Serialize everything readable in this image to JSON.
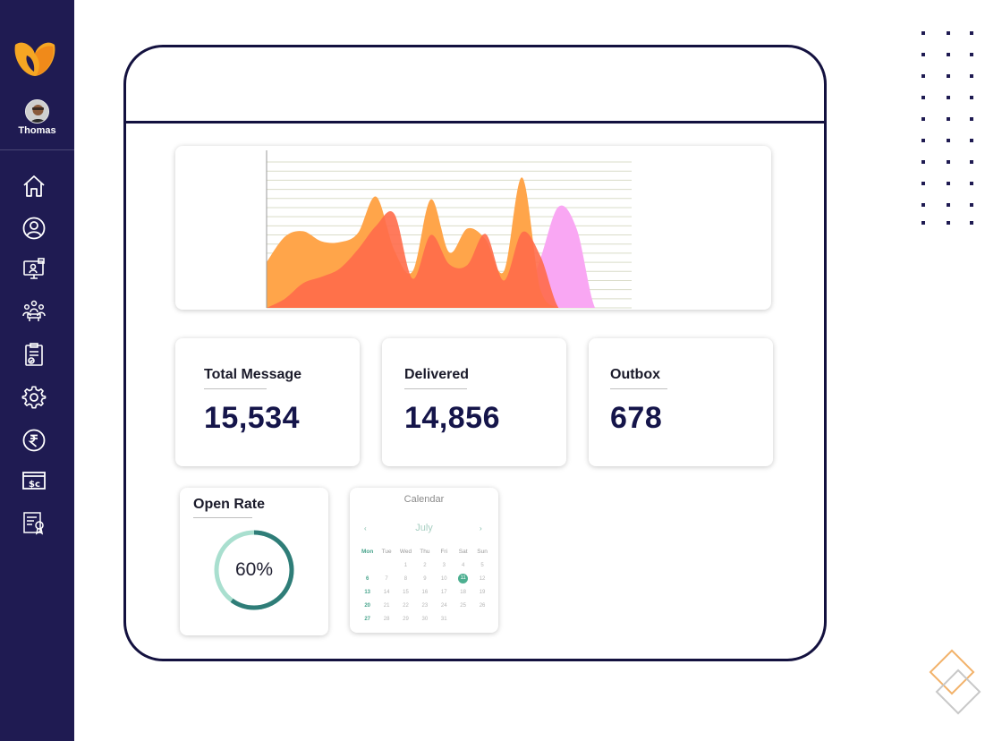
{
  "user": {
    "name": "Thomas"
  },
  "sidebar": {
    "items": [
      {
        "icon": "home-icon"
      },
      {
        "icon": "user-icon"
      },
      {
        "icon": "monitor-user-icon"
      },
      {
        "icon": "team-icon"
      },
      {
        "icon": "clipboard-check-icon"
      },
      {
        "icon": "gear-icon"
      },
      {
        "icon": "rupee-icon"
      },
      {
        "icon": "billing-icon"
      },
      {
        "icon": "certificate-icon"
      }
    ]
  },
  "stats": [
    {
      "label": "Total Message",
      "value": "15,534"
    },
    {
      "label": "Delivered",
      "value": "14,856"
    },
    {
      "label": "Outbox",
      "value": "678"
    }
  ],
  "open_rate": {
    "label": "Open Rate",
    "value_text": "60%",
    "value": 60
  },
  "calendar": {
    "title": "Calendar",
    "month": "July",
    "prev": "‹",
    "next": "›",
    "weekdays": [
      "Mon",
      "Tue",
      "Wed",
      "Thu",
      "Fri",
      "Sat",
      "Sun"
    ],
    "weeks": [
      [
        "",
        "",
        "1",
        "2",
        "3",
        "4",
        "5"
      ],
      [
        "6",
        "7",
        "8",
        "9",
        "10",
        "11",
        "12"
      ],
      [
        "13",
        "14",
        "15",
        "16",
        "17",
        "18",
        "19"
      ],
      [
        "20",
        "21",
        "22",
        "23",
        "24",
        "25",
        "26"
      ],
      [
        "27",
        "28",
        "29",
        "30",
        "31",
        "",
        ""
      ]
    ],
    "selected": "11"
  },
  "colors": {
    "sidebar": "#1f1b52",
    "frame": "#13113f",
    "orange": "#ffa54a",
    "red": "#ff6b4a",
    "pink": "#f9a7f3",
    "gauge": "#2f7d78",
    "gauge_track": "#a9dfcf"
  },
  "chart_data": {
    "type": "area",
    "x": [
      0,
      1,
      2,
      3,
      4,
      5,
      6,
      7,
      8,
      9,
      10,
      11,
      12,
      13,
      14,
      15,
      16,
      17,
      18,
      19,
      20
    ],
    "series": [
      {
        "name": "orange",
        "values": [
          5.0,
          7.8,
          8.4,
          7.3,
          7.2,
          8.2,
          12.2,
          6.3,
          4.0,
          11.9,
          6.1,
          8.7,
          7.5,
          4.0,
          14.3,
          2.0,
          0.0,
          0.0,
          0.0,
          0.0,
          0.0
        ]
      },
      {
        "name": "red",
        "values": [
          0.0,
          1.0,
          2.7,
          3.4,
          4.3,
          6.4,
          9.0,
          10.3,
          3.2,
          8.0,
          4.8,
          4.7,
          8.1,
          3.0,
          8.3,
          5.7,
          0.0,
          0.0,
          0.0,
          0.0,
          0.0
        ]
      },
      {
        "name": "pink",
        "values": [
          0.0,
          0.0,
          0.0,
          0.0,
          0.0,
          4.2,
          8.8,
          0.0,
          0.0,
          6.9,
          0.0,
          0.0,
          0.0,
          0.0,
          0.0,
          5.4,
          11.1,
          8.6,
          0.0,
          0.0,
          0.0
        ]
      }
    ],
    "ylim": [
      0,
      16
    ],
    "grid": true,
    "title": "",
    "xlabel": "",
    "ylabel": ""
  }
}
